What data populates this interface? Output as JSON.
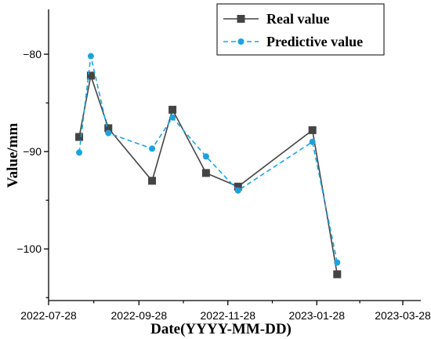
{
  "chart_data": {
    "type": "line",
    "xlabel": "Date(YYYY-MM-DD)",
    "ylabel": "Value/mm",
    "x_ticks": [
      "2022-07-28",
      "2022-09-28",
      "2022-11-28",
      "2023-01-28",
      "2023-03-28"
    ],
    "y_ticks": [
      -80,
      -90,
      -100
    ],
    "xlim": [
      "2022-07-28",
      "2023-03-28"
    ],
    "ylim": [
      -105.3,
      -75.4
    ],
    "legend_position": "top-right",
    "series": [
      {
        "name": "Real value",
        "color": "#444444",
        "line_style": "solid",
        "marker": "square",
        "points": [
          {
            "x": "2022-08-18",
            "y": -88.5
          },
          {
            "x": "2022-08-26",
            "y": -82.2
          },
          {
            "x": "2022-09-07",
            "y": -87.6
          },
          {
            "x": "2022-10-07",
            "y": -93.0
          },
          {
            "x": "2022-10-21",
            "y": -85.7
          },
          {
            "x": "2022-11-13",
            "y": -92.2
          },
          {
            "x": "2022-12-05",
            "y": -93.6
          },
          {
            "x": "2023-01-25",
            "y": -87.8
          },
          {
            "x": "2023-02-11",
            "y": -102.6
          }
        ]
      },
      {
        "name": "Predictive value",
        "color": "#1AA3E0",
        "line_style": "dashed",
        "marker": "circle",
        "points": [
          {
            "x": "2022-08-18",
            "y": -90.1
          },
          {
            "x": "2022-08-26",
            "y": -80.2
          },
          {
            "x": "2022-09-07",
            "y": -88.1
          },
          {
            "x": "2022-10-07",
            "y": -89.7
          },
          {
            "x": "2022-10-21",
            "y": -86.5
          },
          {
            "x": "2022-11-13",
            "y": -90.5
          },
          {
            "x": "2022-12-05",
            "y": -94.0
          },
          {
            "x": "2023-01-25",
            "y": -89.0
          },
          {
            "x": "2023-02-11",
            "y": -101.4
          }
        ]
      }
    ]
  }
}
